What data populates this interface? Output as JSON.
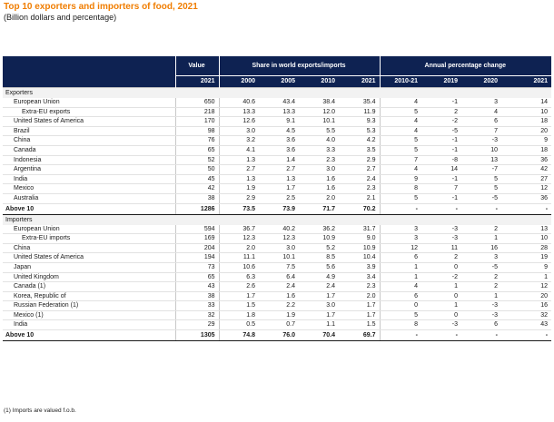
{
  "title": "Top 10 exporters and importers of food, 2021",
  "subtitle": "(Billion dollars and percentage)",
  "header": {
    "value": "Value",
    "share": "Share in world exports/imports",
    "change": "Annual percentage change",
    "years": [
      "2021",
      "2000",
      "2005",
      "2010",
      "2021",
      "2010-21",
      "2019",
      "2020",
      "2021"
    ]
  },
  "exporters": {
    "label": "Exporters",
    "rows": [
      {
        "name": "European Union",
        "indent": 1,
        "v": [
          "650",
          "40.6",
          "43.4",
          "38.4",
          "35.4",
          "4",
          "-1",
          "3",
          "14"
        ]
      },
      {
        "name": "Extra-EU exports",
        "indent": 2,
        "v": [
          "218",
          "13.3",
          "13.3",
          "12.0",
          "11.9",
          "5",
          "2",
          "4",
          "10"
        ]
      },
      {
        "name": "United States of America",
        "indent": 1,
        "v": [
          "170",
          "12.6",
          "9.1",
          "10.1",
          "9.3",
          "4",
          "-2",
          "6",
          "18"
        ]
      },
      {
        "name": "Brazil",
        "indent": 1,
        "v": [
          "98",
          "3.0",
          "4.5",
          "5.5",
          "5.3",
          "4",
          "-5",
          "7",
          "20"
        ]
      },
      {
        "name": "China",
        "indent": 1,
        "v": [
          "76",
          "3.2",
          "3.6",
          "4.0",
          "4.2",
          "5",
          "-1",
          "-3",
          "9"
        ]
      },
      {
        "name": "Canada",
        "indent": 1,
        "v": [
          "65",
          "4.1",
          "3.6",
          "3.3",
          "3.5",
          "5",
          "-1",
          "10",
          "18"
        ]
      },
      {
        "name": "Indonesia",
        "indent": 1,
        "v": [
          "52",
          "1.3",
          "1.4",
          "2.3",
          "2.9",
          "7",
          "-8",
          "13",
          "36"
        ]
      },
      {
        "name": "Argentina",
        "indent": 1,
        "v": [
          "50",
          "2.7",
          "2.7",
          "3.0",
          "2.7",
          "4",
          "14",
          "-7",
          "42"
        ]
      },
      {
        "name": "India",
        "indent": 1,
        "v": [
          "45",
          "1.3",
          "1.3",
          "1.6",
          "2.4",
          "9",
          "-1",
          "5",
          "27"
        ]
      },
      {
        "name": "Mexico",
        "indent": 1,
        "v": [
          "42",
          "1.9",
          "1.7",
          "1.6",
          "2.3",
          "8",
          "7",
          "5",
          "12"
        ]
      },
      {
        "name": "Australia",
        "indent": 1,
        "v": [
          "38",
          "2.9",
          "2.5",
          "2.0",
          "2.1",
          "5",
          "-1",
          "-5",
          "36"
        ]
      }
    ],
    "total": {
      "name": "Above 10",
      "v": [
        "1286",
        "73.5",
        "73.9",
        "71.7",
        "70.2",
        "-",
        "-",
        "-",
        "-"
      ]
    }
  },
  "importers": {
    "label": "Importers",
    "rows": [
      {
        "name": "European Union",
        "indent": 1,
        "v": [
          "594",
          "36.7",
          "40.2",
          "36.2",
          "31.7",
          "3",
          "-3",
          "2",
          "13"
        ]
      },
      {
        "name": "Extra-EU imports",
        "indent": 2,
        "v": [
          "169",
          "12.3",
          "12.3",
          "10.9",
          "9.0",
          "3",
          "-3",
          "1",
          "10"
        ]
      },
      {
        "name": "China",
        "indent": 1,
        "v": [
          "204",
          "2.0",
          "3.0",
          "5.2",
          "10.9",
          "12",
          "11",
          "16",
          "28"
        ]
      },
      {
        "name": "United States of America",
        "indent": 1,
        "v": [
          "194",
          "11.1",
          "10.1",
          "8.5",
          "10.4",
          "6",
          "2",
          "3",
          "19"
        ]
      },
      {
        "name": "Japan",
        "indent": 1,
        "v": [
          "73",
          "10.6",
          "7.5",
          "5.6",
          "3.9",
          "1",
          "0",
          "-5",
          "9"
        ]
      },
      {
        "name": "United Kingdom",
        "indent": 1,
        "v": [
          "65",
          "6.3",
          "6.4",
          "4.9",
          "3.4",
          "1",
          "-2",
          "2",
          "1"
        ]
      },
      {
        "name": "Canada (1)",
        "indent": 1,
        "v": [
          "43",
          "2.6",
          "2.4",
          "2.4",
          "2.3",
          "4",
          "1",
          "2",
          "12"
        ]
      },
      {
        "name": "Korea, Republic of",
        "indent": 1,
        "v": [
          "38",
          "1.7",
          "1.6",
          "1.7",
          "2.0",
          "6",
          "0",
          "1",
          "20"
        ]
      },
      {
        "name": "Russian Federation (1)",
        "indent": 1,
        "v": [
          "33",
          "1.5",
          "2.2",
          "3.0",
          "1.7",
          "0",
          "1",
          "-3",
          "16"
        ]
      },
      {
        "name": "Mexico (1)",
        "indent": 1,
        "v": [
          "32",
          "1.8",
          "1.9",
          "1.7",
          "1.7",
          "5",
          "0",
          "-3",
          "32"
        ]
      },
      {
        "name": "India",
        "indent": 1,
        "v": [
          "29",
          "0.5",
          "0.7",
          "1.1",
          "1.5",
          "8",
          "-3",
          "6",
          "43"
        ]
      }
    ],
    "total": {
      "name": "Above 10",
      "v": [
        "1305",
        "74.8",
        "76.0",
        "70.4",
        "69.7",
        "-",
        "-",
        "-",
        "-"
      ]
    }
  },
  "footnote": "(1) Imports are valued f.o.b."
}
